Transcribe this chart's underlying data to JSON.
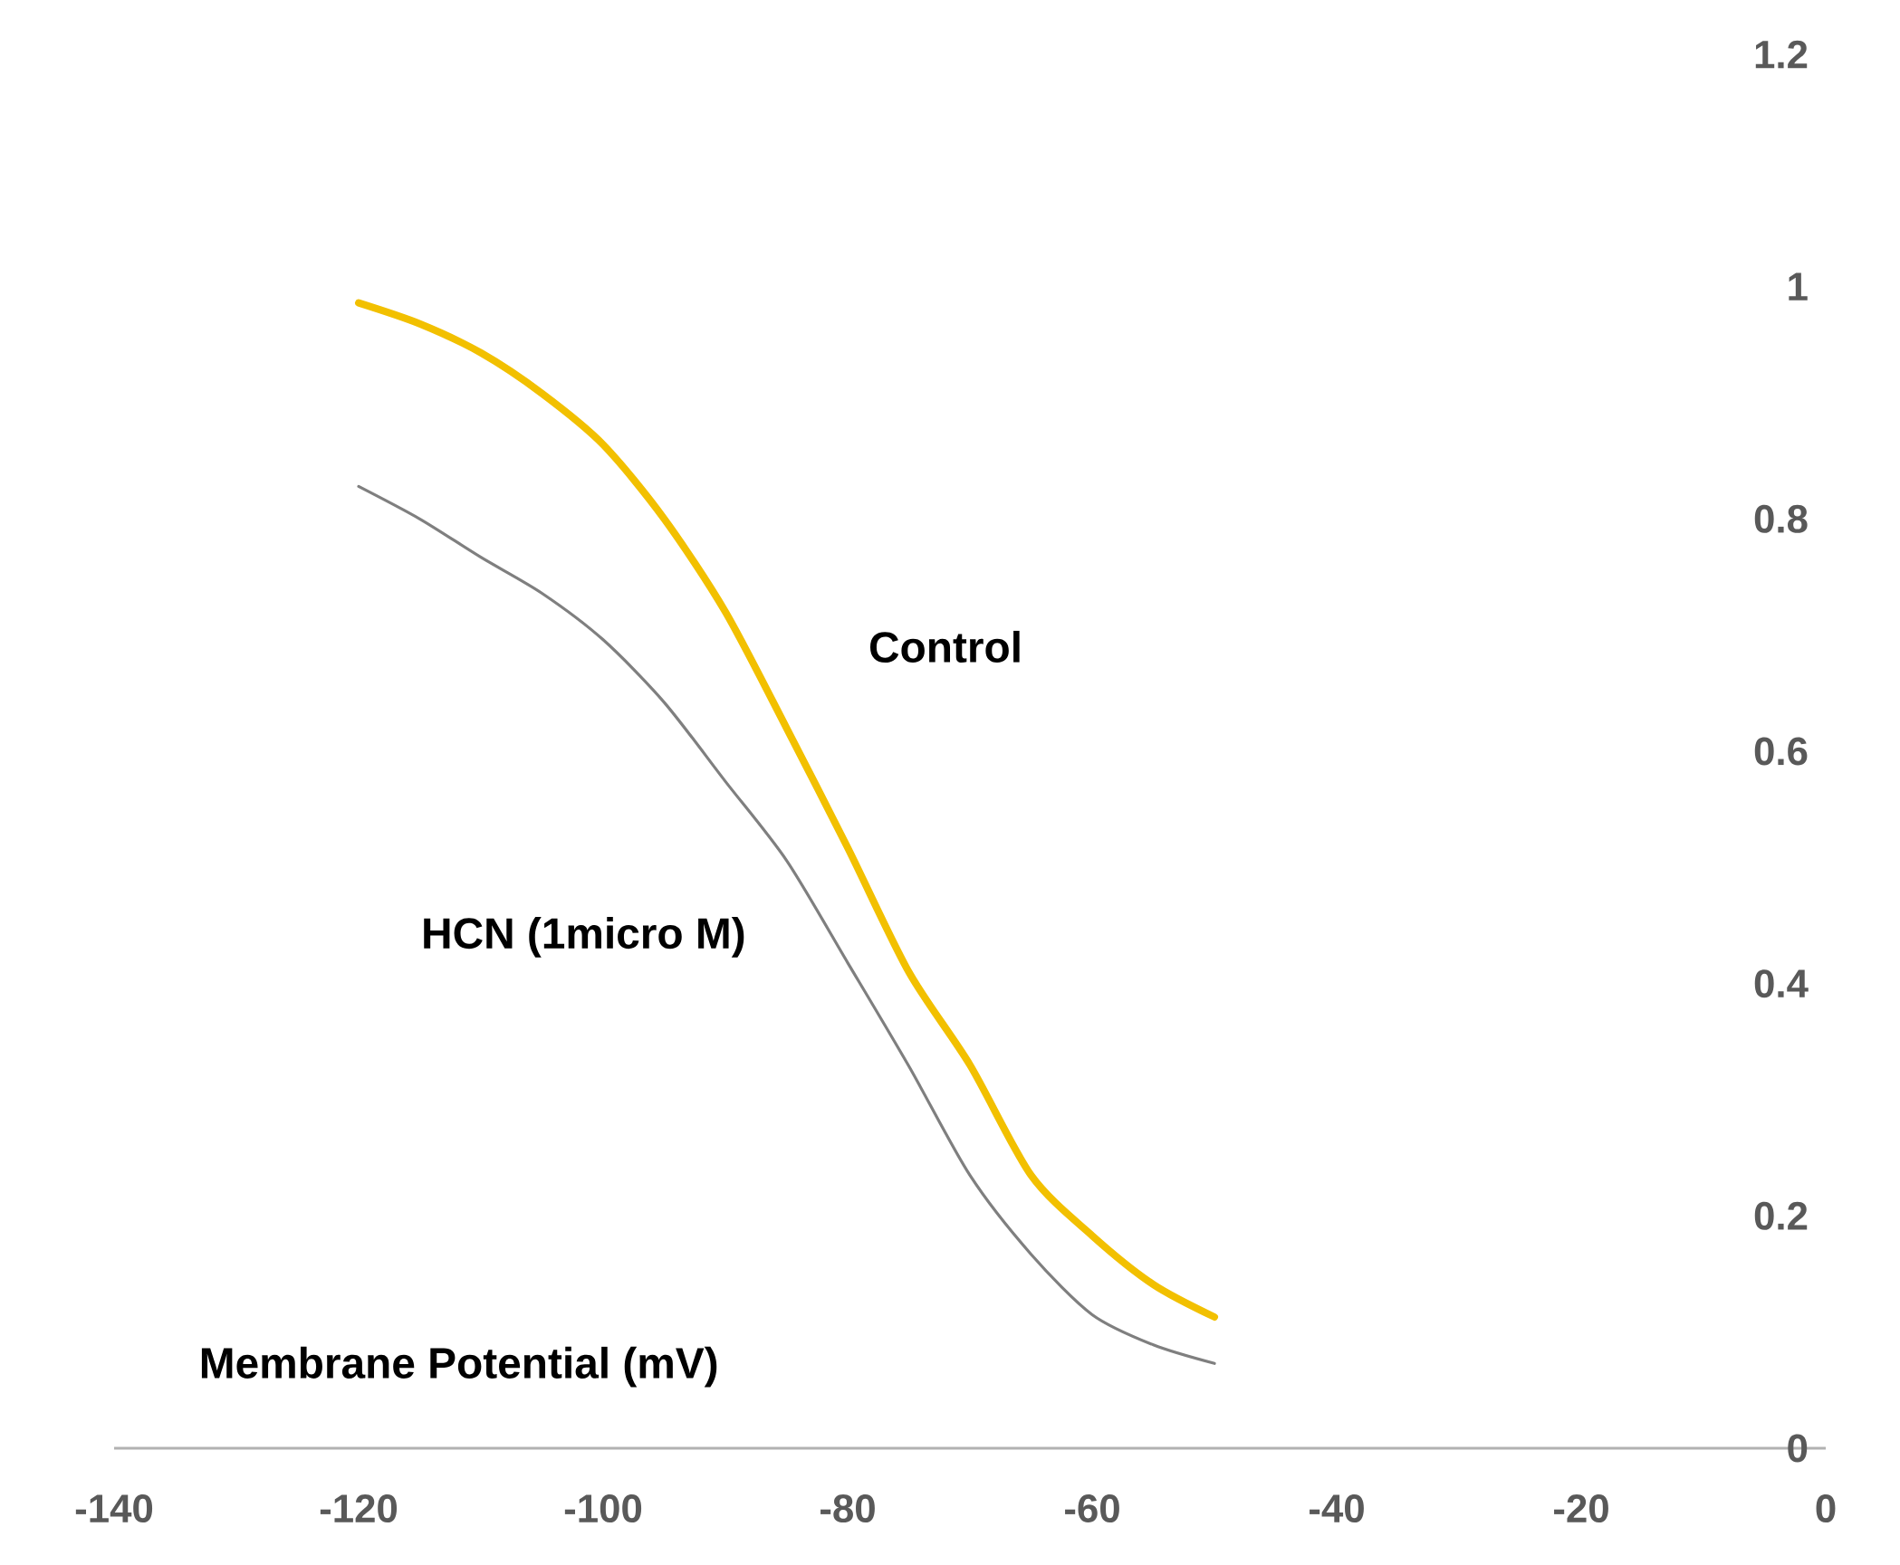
{
  "chart_data": {
    "type": "line",
    "xlabel": "Membrane Potential (mV)",
    "x": [
      -120,
      -115,
      -110,
      -105,
      -100,
      -95,
      -90,
      -85,
      -80,
      -75,
      -70,
      -65,
      -60,
      -55,
      -50
    ],
    "series": [
      {
        "name": "Control",
        "color": "#f2c000",
        "values": [
          0.986,
          0.968,
          0.943,
          0.908,
          0.864,
          0.8,
          0.72,
          0.62,
          0.517,
          0.41,
          0.33,
          0.235,
          0.183,
          0.141,
          0.113
        ]
      },
      {
        "name": "HCN (1micro M)",
        "color": "#7f7f7f",
        "values": [
          0.828,
          0.8,
          0.767,
          0.736,
          0.696,
          0.642,
          0.574,
          0.506,
          0.418,
          0.329,
          0.235,
          0.167,
          0.115,
          0.089,
          0.073
        ]
      }
    ],
    "xlim": [
      -140,
      0
    ],
    "ylim": [
      0,
      1.2
    ],
    "xticks": [
      -140,
      -120,
      -100,
      -80,
      -60,
      -40,
      -20,
      0
    ],
    "yticks": [
      0,
      0.2,
      0.4,
      0.6,
      0.8,
      1,
      1.2
    ],
    "grid": false,
    "marker": "none",
    "line_style": "solid"
  }
}
